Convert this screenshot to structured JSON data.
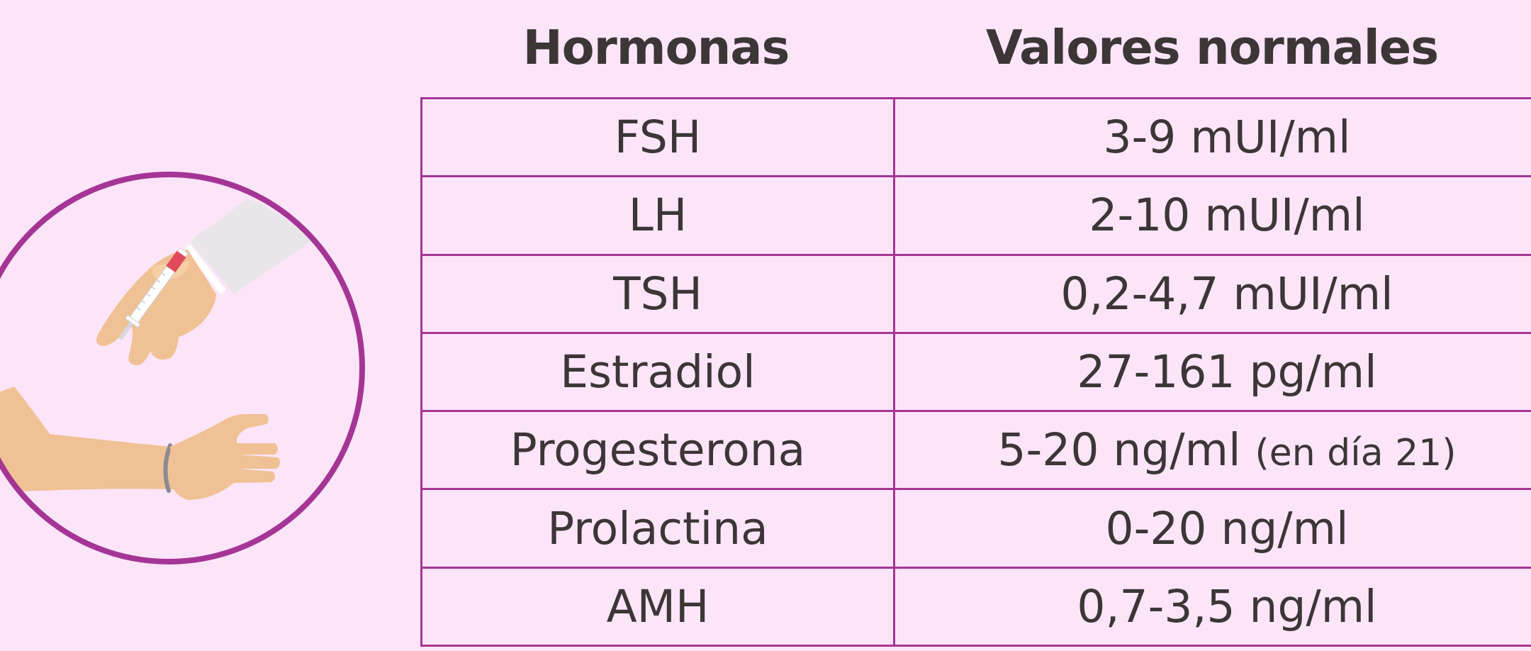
{
  "table": {
    "header_hormonas": "Hormonas",
    "header_valores": "Valores normales",
    "rows": [
      {
        "hormona": "FSH",
        "valor": "3-9 mUI/ml",
        "nota": ""
      },
      {
        "hormona": "LH",
        "valor": "2-10 mUI/ml",
        "nota": ""
      },
      {
        "hormona": "TSH",
        "valor": "0,2-4,7 mUI/ml",
        "nota": ""
      },
      {
        "hormona": "Estradiol",
        "valor": "27-161 pg/ml",
        "nota": ""
      },
      {
        "hormona": "Progesterona",
        "valor": "5-20 ng/ml",
        "nota": "(en día 21)"
      },
      {
        "hormona": "Prolactina",
        "valor": "0-20 ng/ml",
        "nota": ""
      },
      {
        "hormona": "AMH",
        "valor": "0,7-3,5 ng/ml",
        "nota": ""
      }
    ]
  },
  "colors": {
    "background": "#fde5f9",
    "accent": "#a53595",
    "text": "#3c3637",
    "skin": "#f0c194",
    "sleeve": "#e9e6e9",
    "vial": "#e04a5a"
  },
  "icons": {
    "illustration": "blood-draw-illustration"
  }
}
